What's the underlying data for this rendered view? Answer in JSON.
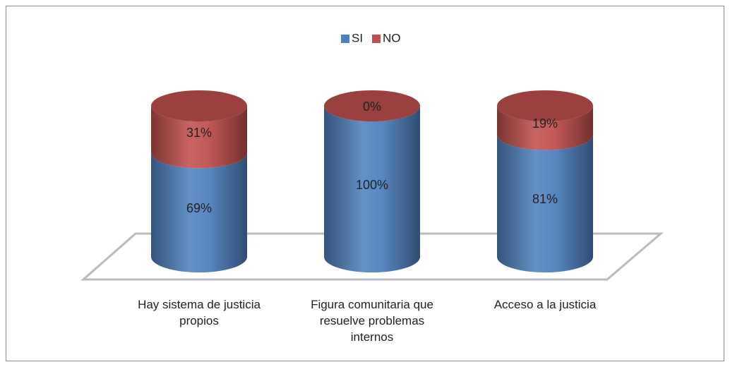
{
  "chart_data": {
    "type": "stacked_cylinder",
    "categories": [
      "Hay sistema de justicia propios",
      "Figura comunitaria que resuelve problemas internos",
      "Acceso a la justicia"
    ],
    "series": [
      {
        "name": "SI",
        "color": "#4f81bd",
        "values": [
          69,
          100,
          81
        ],
        "value_labels": [
          "69%",
          "100%",
          "81%"
        ]
      },
      {
        "name": "NO",
        "color": "#c0504d",
        "values": [
          31,
          0,
          19
        ],
        "value_labels": [
          "31%",
          "0%",
          "19%"
        ]
      }
    ],
    "legend": "top"
  }
}
